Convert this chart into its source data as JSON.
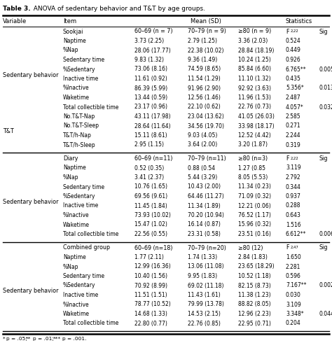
{
  "title_bold": "Table 3.",
  "title_rest": "  ANOVA of sedentary behavior and T&T by age groups.",
  "sections": [
    {
      "subheader_label": "Sookjai",
      "col1": "60–69 (n = 7)",
      "col2": "70–79 (n = 9)",
      "col3": "≥80 (n = 9)",
      "F_label": "F2,22",
      "variable_label": "Sedentary behavior",
      "variable_rows": [
        {
          "item": "Naptime",
          "c1": "3.73 (2.25)",
          "c2": "2.79 (1.25)",
          "c3": "3.36 (2.03)",
          "F": "0.524",
          "Fstar": "",
          "sig": ""
        },
        {
          "item": "%Nap",
          "c1": "28.06 (17.77)",
          "c2": "22.38 (10.02)",
          "c3": "28.84 (18.19)",
          "F": "0.449",
          "Fstar": "",
          "sig": ""
        },
        {
          "item": "Sedentary time",
          "c1": "9.83 (1.32)",
          "c2": "9.36 (1.49)",
          "c3": "10.24 (1.25)",
          "F": "0.926",
          "Fstar": "",
          "sig": ""
        },
        {
          "item": "%Sedentary",
          "c1": "73.06 (8.16)",
          "c2": "74.59 (8.65)",
          "c3": "85.84 (6.60)",
          "F": "6.765",
          "Fstar": "**",
          "sig": "0.005"
        },
        {
          "item": "Inactive time",
          "c1": "11.61 (0.92)",
          "c2": "11.54 (1.29)",
          "c3": "11.10 (1.32)",
          "F": "0.435",
          "Fstar": "",
          "sig": ""
        },
        {
          "item": "%Inactive",
          "c1": "86.39 (5.99)",
          "c2": "91.96 (2.90)",
          "c3": "92.92 (3.63)",
          "F": "5.356",
          "Fstar": "*",
          "sig": "0.013"
        },
        {
          "item": "Waketime",
          "c1": "13.44 (0.59)",
          "c2": "12.56 (1.46)",
          "c3": "11.96 (1.53)",
          "F": "2.487",
          "Fstar": "",
          "sig": ""
        },
        {
          "item": "Total collectible time",
          "c1": "23.17 (0.96)",
          "c2": "22.10 (0.62)",
          "c3": "22.76 (0.73)",
          "F": "4.057",
          "Fstar": "*",
          "sig": "0.032"
        }
      ],
      "tt_label": "T&T",
      "tt_rows": [
        {
          "item": "No.T&T-Nap",
          "c1": "43.11 (17.98)",
          "c2": "23.04 (13.62)",
          "c3": "41.05 (26.03)",
          "F": "2.585",
          "Fstar": "",
          "sig": ""
        },
        {
          "item": "No.T&T-Sleep",
          "c1": "28.64 (11.64)",
          "c2": "34.56 (19.70)",
          "c3": "33.98 (18.17)",
          "F": "0.271",
          "Fstar": "",
          "sig": ""
        },
        {
          "item": "T&T/h-Nap",
          "c1": "15.11 (8.61)",
          "c2": "9.03 (4.05)",
          "c3": "12.52 (4.42)",
          "F": "2.244",
          "Fstar": "",
          "sig": ""
        },
        {
          "item": "T&T/h-Sleep",
          "c1": "2.95 (1.15)",
          "c2": "3.64 (2.00)",
          "c3": "3.20 (1.87)",
          "F": "0.319",
          "Fstar": "",
          "sig": ""
        }
      ]
    },
    {
      "subheader_label": "Diary",
      "col1": "60–69 (n=11)",
      "col2": "70–79 (n=11)",
      "col3": "≥80 (n=3)",
      "F_label": "F2,22",
      "variable_label": "Sedentary behavior",
      "variable_rows": [
        {
          "item": "Naptime",
          "c1": "0.52 (0.35)",
          "c2": "0.88 (0.54",
          "c3": "1.27 (0.85",
          "F": "3.119",
          "Fstar": "",
          "sig": ""
        },
        {
          "item": "%Nap",
          "c1": "3.41 (2.37)",
          "c2": "5.44 (3.29)",
          "c3": "8.05 (5.53)",
          "F": "2.792",
          "Fstar": "",
          "sig": ""
        },
        {
          "item": "Sedentary time",
          "c1": "10.76 (1.65)",
          "c2": "10.43 (2.00)",
          "c3": "11.34 (0.23)",
          "F": "0.344",
          "Fstar": "",
          "sig": ""
        },
        {
          "item": "%Sedentary",
          "c1": "69.56 (9.61)",
          "c2": "64.46 (11.27)",
          "c3": "71.09 (0.32)",
          "F": "0.937",
          "Fstar": "",
          "sig": ""
        },
        {
          "item": "Inactive time",
          "c1": "11.45 (1.84)",
          "c2": "11.34 (1.89)",
          "c3": "12.21 (0.06)",
          "F": "0.288",
          "Fstar": "",
          "sig": ""
        },
        {
          "item": "%Inactive",
          "c1": "73.93 (10.02)",
          "c2": "70.20 (10.94)",
          "c3": "76.52 (1.17)",
          "F": "0.643",
          "Fstar": "",
          "sig": ""
        },
        {
          "item": "Waketime",
          "c1": "15.47 (1.02)",
          "c2": "16.14 (0.87)",
          "c3": "15.96 (0.32)",
          "F": "1.516",
          "Fstar": "",
          "sig": ""
        },
        {
          "item": "Total collectible time",
          "c1": "22.56 (0.55)",
          "c2": "23.31 (0.58)",
          "c3": "23.51 (0.16)",
          "F": "6.612",
          "Fstar": "**",
          "sig": "0.006"
        }
      ],
      "tt_label": null,
      "tt_rows": []
    },
    {
      "subheader_label": "Combined group",
      "col1": "60–69 (n=18)",
      "col2": "70–79 (n=20)",
      "col3": "≥80 (12)",
      "F_label": "F2,47",
      "variable_label": "Sedentary behavior",
      "variable_rows": [
        {
          "item": "Naptime",
          "c1": "1.77 (2.11)",
          "c2": "1.74 (1.33)",
          "c3": "2.84 (1.83)",
          "F": "1.650",
          "Fstar": "",
          "sig": ""
        },
        {
          "item": "%Nap",
          "c1": "12.99 (16.36)",
          "c2": "13.06 (11.08)",
          "c3": "23.65 (18.29)",
          "F": "2.281",
          "Fstar": "",
          "sig": ""
        },
        {
          "item": "Sedentary time",
          "c1": "10.40 (1.56)",
          "c2": "9.95 (1.83)",
          "c3": "10.52 (1.18)",
          "F": "0.596",
          "Fstar": "",
          "sig": ""
        },
        {
          "item": "%Sedentary",
          "c1": "70.92 (8.99)",
          "c2": "69.02 (11.18)",
          "c3": "82.15 (8.73)",
          "F": "7.167",
          "Fstar": "**",
          "sig": "0.002"
        },
        {
          "item": "Inactive time",
          "c1": "11.51 (1.51)",
          "c2": "11.43 (1.61)",
          "c3": "11.38 (1.23)",
          "F": "0.030",
          "Fstar": "",
          "sig": ""
        },
        {
          "item": "%Inactive",
          "c1": "78.77 (10.52)",
          "c2": "79.99 (13.78)",
          "c3": "88.82 (8.05)",
          "F": "3.109",
          "Fstar": "",
          "sig": ""
        },
        {
          "item": "Waketime",
          "c1": "14.68 (1.33)",
          "c2": "14.53 (2.15)",
          "c3": "12.96 (2.23)",
          "F": "3.348",
          "Fstar": "*",
          "sig": "0.044"
        },
        {
          "item": "Total collectible time",
          "c1": "22.80 (0.77)",
          "c2": "22.76 (0.85)",
          "c3": "22.95 (0.71)",
          "F": "0.204",
          "Fstar": "",
          "sig": ""
        }
      ],
      "tt_label": null,
      "tt_rows": []
    }
  ],
  "footnote": "*p = .05; **p = .01; ***p = .001.",
  "bg_color": "#ffffff"
}
